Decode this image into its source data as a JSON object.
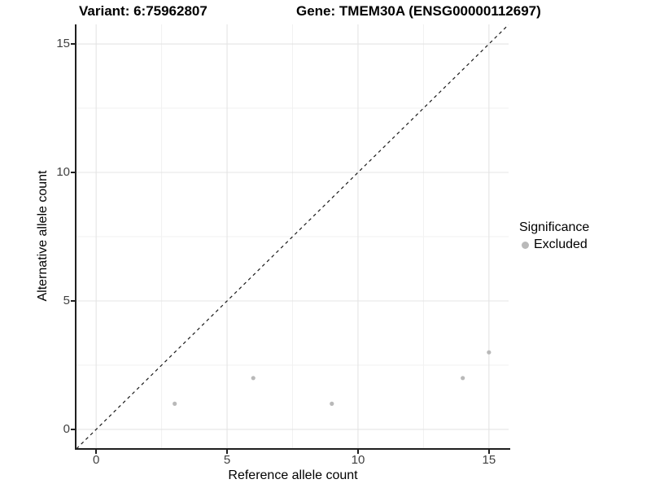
{
  "title": {
    "variant": "Variant: 6:75962807",
    "gene": "Gene: TMEM30A (ENSG00000112697)"
  },
  "axes": {
    "x_label": "Reference allele count",
    "y_label": "Alternative allele count"
  },
  "legend": {
    "title": "Significance",
    "items": [
      {
        "label": "Excluded",
        "color": "#b9b9b9"
      }
    ]
  },
  "colors": {
    "point": "#b9b9b9",
    "grid_major": "#e4e4e4",
    "grid_minor": "#f1f1f1",
    "identity_line": "#1a1a1a",
    "axis_line": "#1f1f1f",
    "tick_label": "#404040",
    "background": "#ffffff"
  },
  "chart_data": {
    "type": "scatter",
    "title": "Variant: 6:75962807 — Gene: TMEM30A (ENSG00000112697)",
    "xlabel": "Reference allele count",
    "ylabel": "Alternative allele count",
    "xlim": [
      -0.75,
      15.75
    ],
    "ylim": [
      -0.76,
      15.76
    ],
    "x_ticks": [
      0,
      5,
      10,
      15
    ],
    "y_ticks": [
      0,
      5,
      10,
      15
    ],
    "x_minor": [
      2.5,
      7.5,
      12.5
    ],
    "y_minor": [
      2.5,
      7.5,
      12.5
    ],
    "grid": true,
    "legend_position": "right",
    "series": [
      {
        "name": "Excluded",
        "color": "#b9b9b9",
        "points": [
          [
            3,
            1
          ],
          [
            6,
            2
          ],
          [
            9,
            1
          ],
          [
            14,
            2
          ],
          [
            15,
            3
          ]
        ]
      }
    ],
    "reference_line": {
      "kind": "identity",
      "slope": 1,
      "intercept": 0,
      "style": "dashed",
      "color": "#1a1a1a"
    }
  }
}
